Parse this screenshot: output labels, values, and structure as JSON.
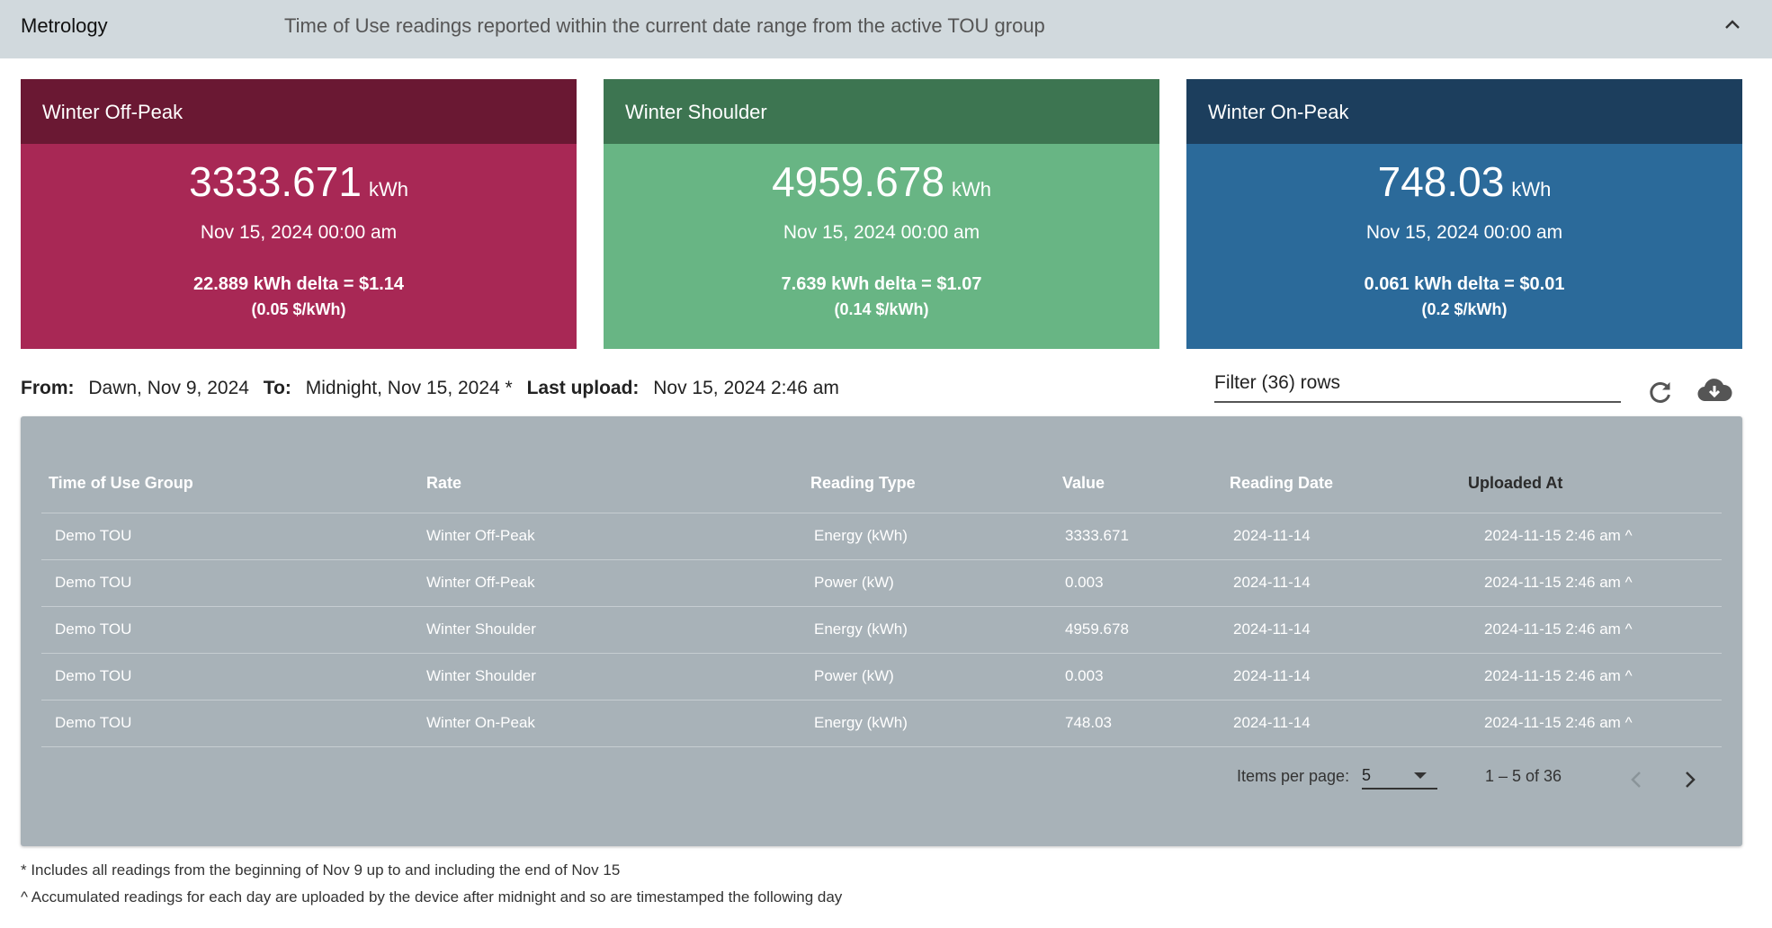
{
  "header": {
    "title": "Metrology",
    "description": "Time of Use readings reported within the current date range from the active TOU group",
    "collapse_icon": "chevron-up-icon"
  },
  "cards": [
    {
      "title": "Winter Off-Peak",
      "value": "3333.671",
      "unit": "kWh",
      "date": "Nov 15, 2024 00:00 am",
      "delta": "22.889 kWh delta = $1.14",
      "rate": "(0.05 $/kWh)",
      "header_color": "#6a1833",
      "body_color": "#a82855"
    },
    {
      "title": "Winter Shoulder",
      "value": "4959.678",
      "unit": "kWh",
      "date": "Nov 15, 2024 00:00 am",
      "delta": "7.639 kWh delta = $1.07",
      "rate": "(0.14 $/kWh)",
      "header_color": "#3d7551",
      "body_color": "#68b584"
    },
    {
      "title": "Winter On-Peak",
      "value": "748.03",
      "unit": "kWh",
      "date": "Nov 15, 2024 00:00 am",
      "delta": "0.061 kWh delta = $0.01",
      "rate": "(0.2 $/kWh)",
      "header_color": "#1c3e5d",
      "body_color": "#2b6a9a"
    }
  ],
  "range": {
    "from_label": "From:",
    "from_value": "Dawn, Nov 9, 2024",
    "to_label": "To:",
    "to_value": "Midnight, Nov 15, 2024 *",
    "upload_label": "Last upload:",
    "upload_value": "Nov 15, 2024 2:46 am"
  },
  "filter": {
    "placeholder": "Filter (36) rows",
    "value": ""
  },
  "toolbar": {
    "refresh_icon": "refresh-icon",
    "download_icon": "cloud-download-icon"
  },
  "table": {
    "columns": [
      "Time of Use Group",
      "Rate",
      "Reading Type",
      "Value",
      "Reading Date",
      "Uploaded At"
    ],
    "rows": [
      [
        "Demo TOU",
        "Winter Off-Peak",
        "Energy (kWh)",
        "3333.671",
        "2024-11-14",
        "2024-11-15 2:46 am ^"
      ],
      [
        "Demo TOU",
        "Winter Off-Peak",
        "Power (kW)",
        "0.003",
        "2024-11-14",
        "2024-11-15 2:46 am ^"
      ],
      [
        "Demo TOU",
        "Winter Shoulder",
        "Energy (kWh)",
        "4959.678",
        "2024-11-14",
        "2024-11-15 2:46 am ^"
      ],
      [
        "Demo TOU",
        "Winter Shoulder",
        "Power (kW)",
        "0.003",
        "2024-11-14",
        "2024-11-15 2:46 am ^"
      ],
      [
        "Demo TOU",
        "Winter On-Peak",
        "Energy (kWh)",
        "748.03",
        "2024-11-14",
        "2024-11-15 2:46 am ^"
      ]
    ]
  },
  "paginator": {
    "items_per_page_label": "Items per page:",
    "items_per_page_value": "5",
    "range_label": "1 – 5 of 36",
    "prev_icon": "chevron-left-icon",
    "next_icon": "chevron-right-icon"
  },
  "footnotes": [
    "* Includes all readings from the beginning of Nov 9 up to and including the end of Nov 15",
    "^ Accumulated readings for each day are uploaded by the device after midnight and so are timestamped the following day"
  ]
}
